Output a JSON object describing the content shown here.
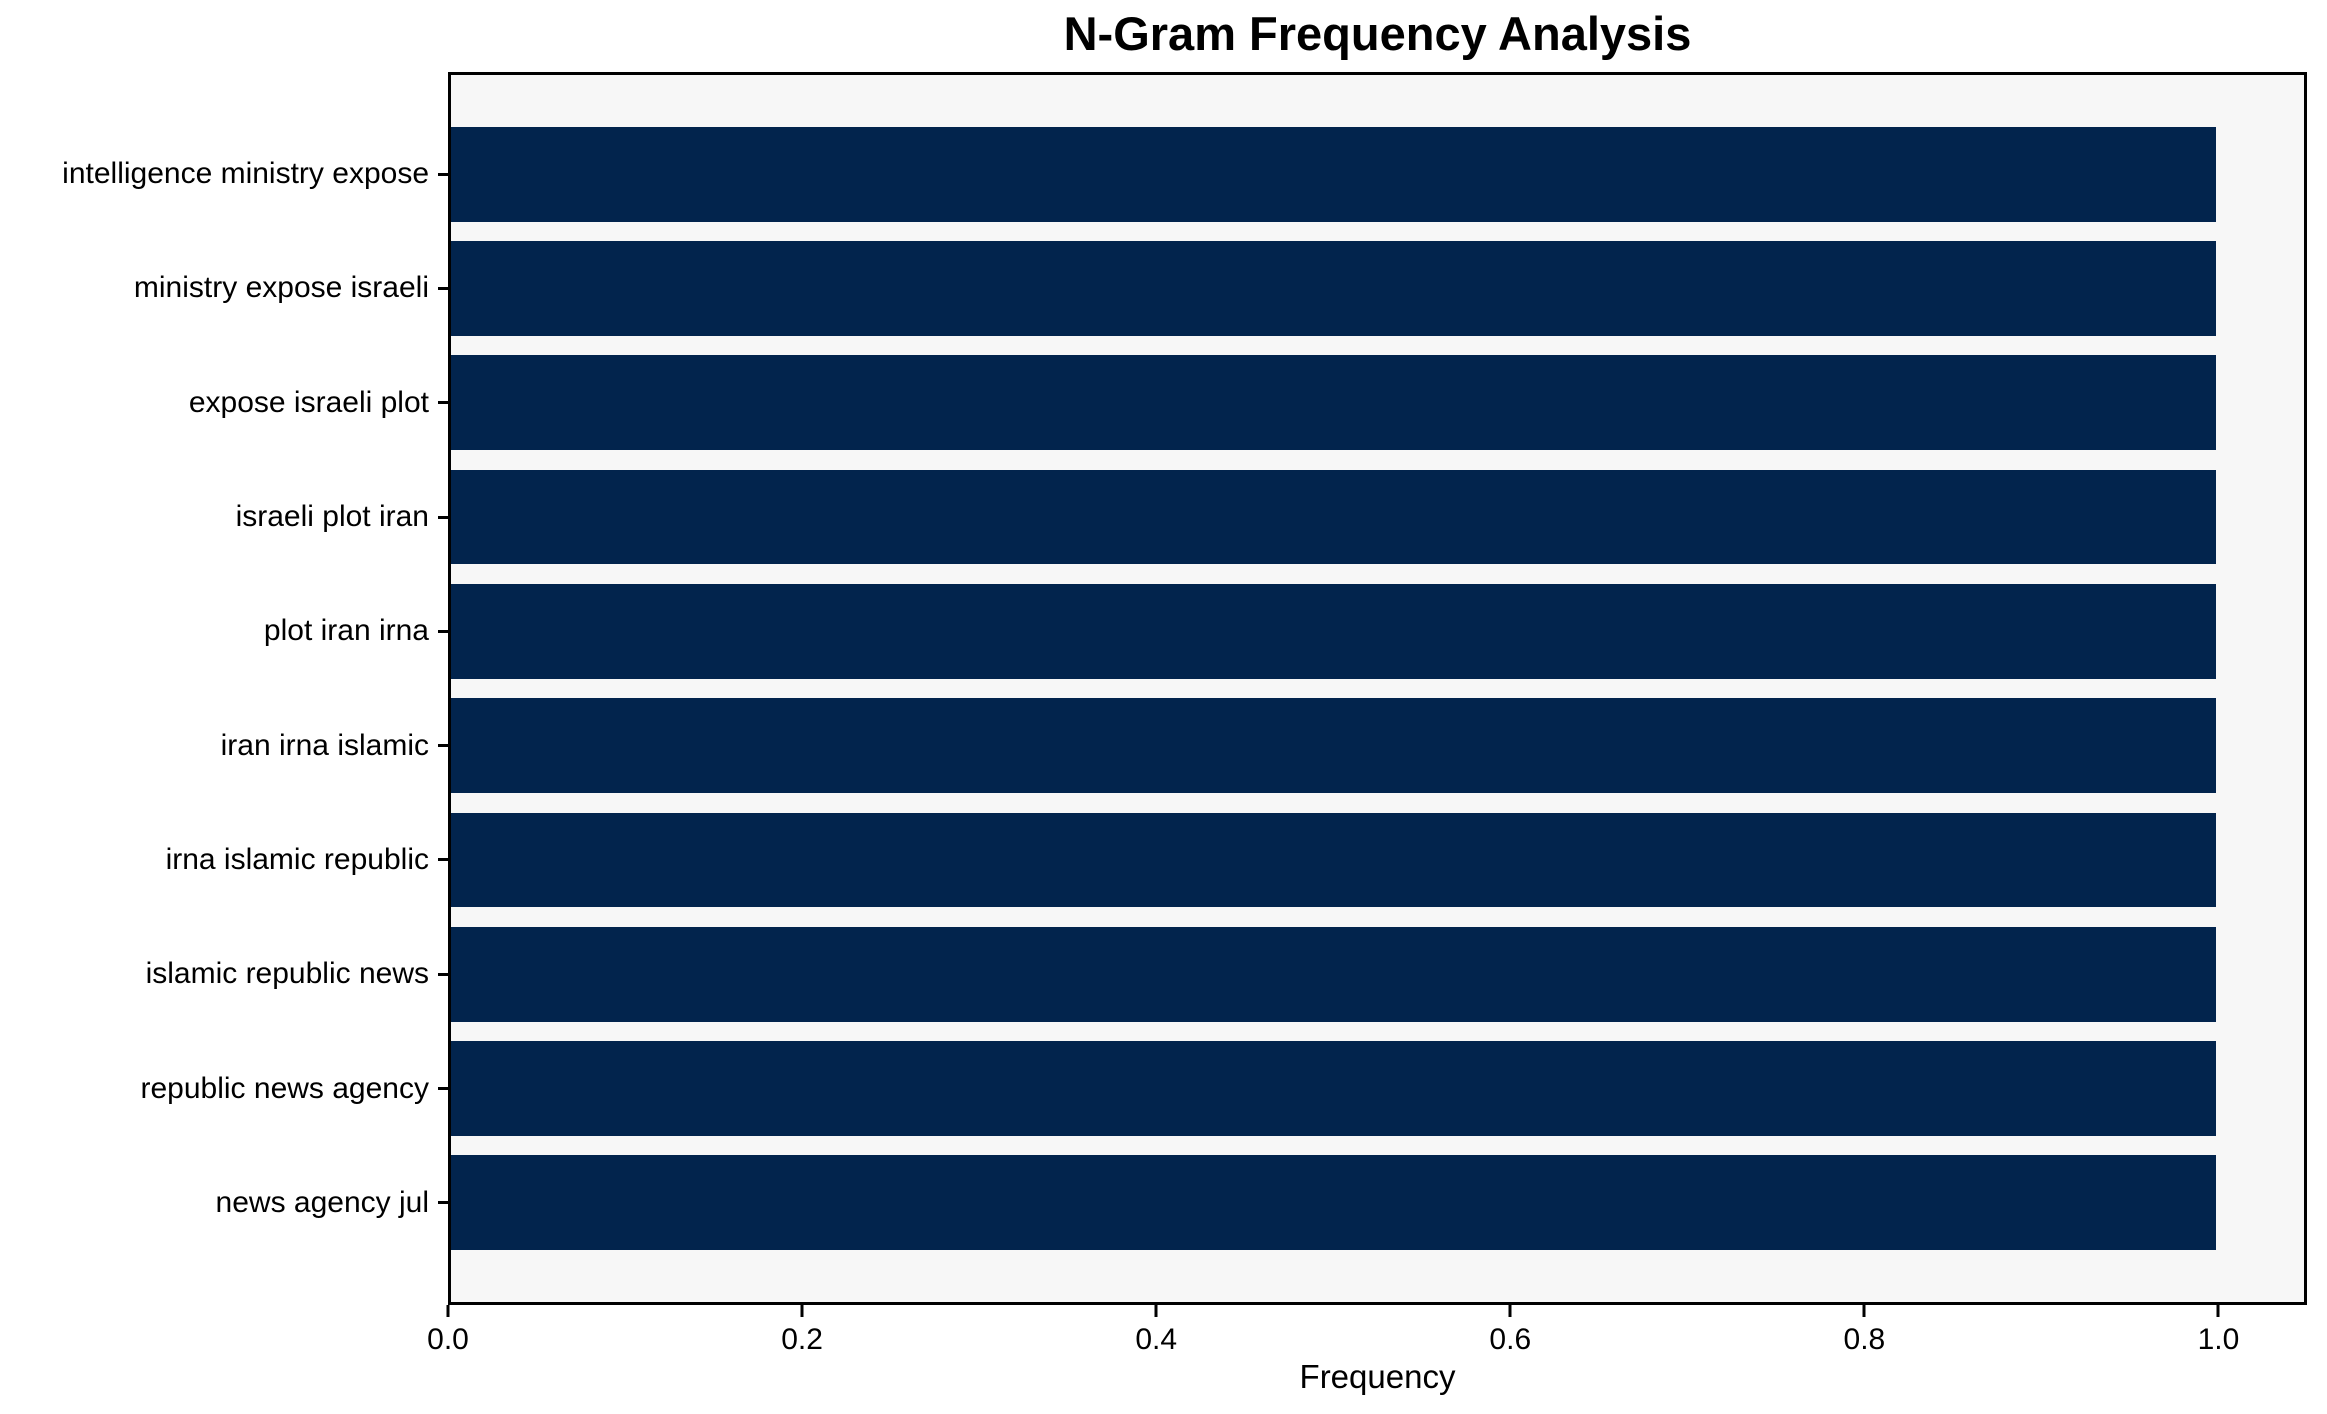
{
  "chart_data": {
    "type": "bar",
    "orientation": "horizontal",
    "title": "N-Gram Frequency Analysis",
    "xlabel": "Frequency",
    "ylabel": "",
    "categories": [
      "intelligence ministry expose",
      "ministry expose israeli",
      "expose israeli plot",
      "israeli plot iran",
      "plot iran irna",
      "iran irna islamic",
      "irna islamic republic",
      "islamic republic news",
      "republic news agency",
      "news agency jul"
    ],
    "values": [
      1.0,
      1.0,
      1.0,
      1.0,
      1.0,
      1.0,
      1.0,
      1.0,
      1.0,
      1.0
    ],
    "xticks": [
      0.0,
      0.2,
      0.4,
      0.6,
      0.8,
      1.0
    ],
    "xtick_labels": [
      "0.0",
      "0.2",
      "0.4",
      "0.6",
      "0.8",
      "1.0"
    ],
    "xlim": [
      0.0,
      1.05
    ],
    "grid": false,
    "legend_position": "none",
    "colors": {
      "bar": "#02244d",
      "plot_bg": "#f7f7f7",
      "figure_bg": "#ffffff",
      "text": "#000000",
      "spine": "#000000"
    }
  }
}
